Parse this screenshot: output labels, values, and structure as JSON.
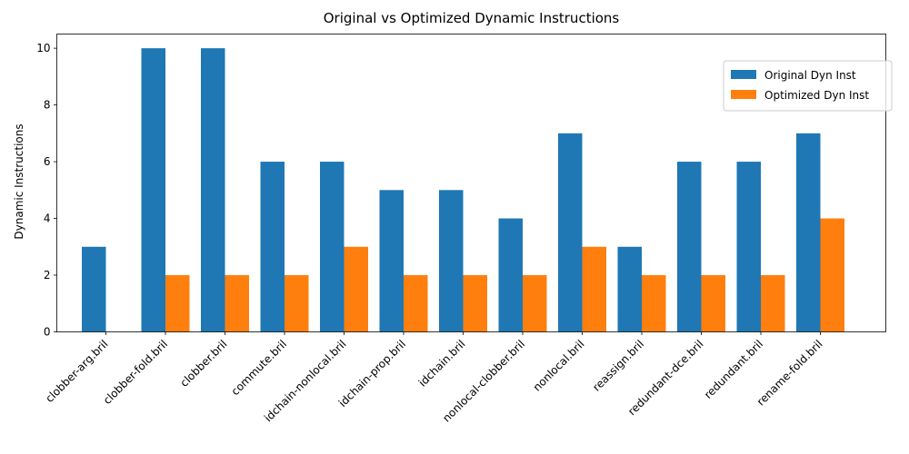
{
  "chart_data": {
    "type": "bar",
    "title": "Original vs Optimized Dynamic Instructions",
    "xlabel": "",
    "ylabel": "Dynamic Instructions",
    "ylim": [
      0,
      10.5
    ],
    "yticks": [
      0,
      2,
      4,
      6,
      8,
      10
    ],
    "categories": [
      "clobber-arg.bril",
      "clobber-fold.bril",
      "clobber.bril",
      "commute.bril",
      "idchain-nonlocal.bril",
      "idchain-prop.bril",
      "idchain.bril",
      "nonlocal-clobber.bril",
      "nonlocal.bril",
      "reassign.bril",
      "redundant-dce.bril",
      "redundant.bril",
      "rename-fold.bril"
    ],
    "series": [
      {
        "name": "Original Dyn Inst",
        "color": "#1f77b4",
        "values": [
          3,
          10,
          10,
          6,
          6,
          5,
          5,
          4,
          7,
          3,
          6,
          6,
          7
        ]
      },
      {
        "name": "Optimized Dyn Inst",
        "color": "#ff7f0e",
        "values": [
          0,
          2,
          2,
          2,
          3,
          2,
          2,
          2,
          3,
          2,
          2,
          2,
          4
        ]
      }
    ],
    "legend_position": "top-right",
    "grid": false
  }
}
